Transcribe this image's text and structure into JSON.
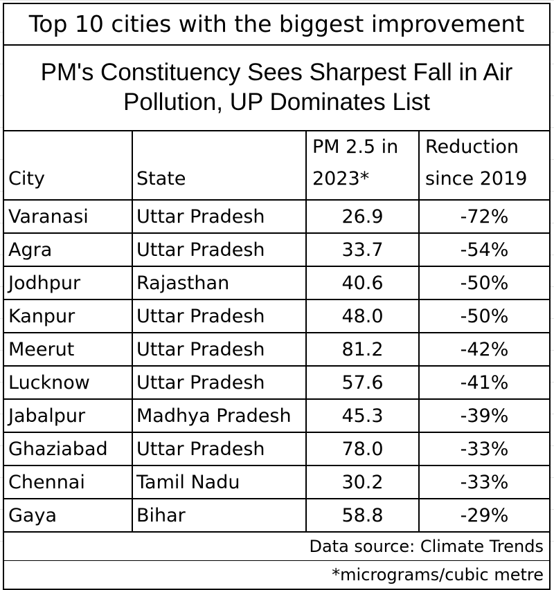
{
  "title": "Top 10 cities with the biggest improvement",
  "subtitle_line1": "PM's Constituency Sees Sharpest Fall in Air",
  "subtitle_line2": "Pollution, UP Dominates List",
  "headers": {
    "city": "City",
    "state": "State",
    "pm_line1": "PM 2.5 in",
    "pm_line2": "2023*",
    "reduction_line1": "Reduction",
    "reduction_line2": "since 2019"
  },
  "rows": [
    {
      "city": "Varanasi",
      "state": "Uttar Pradesh",
      "pm": "26.9",
      "reduction": "-72%"
    },
    {
      "city": "Agra",
      "state": "Uttar Pradesh",
      "pm": "33.7",
      "reduction": "-54%"
    },
    {
      "city": "Jodhpur",
      "state": "Rajasthan",
      "pm": "40.6",
      "reduction": "-50%"
    },
    {
      "city": "Kanpur",
      "state": "Uttar Pradesh",
      "pm": "48.0",
      "reduction": "-50%"
    },
    {
      "city": "Meerut",
      "state": "Uttar Pradesh",
      "pm": "81.2",
      "reduction": "-42%"
    },
    {
      "city": "Lucknow",
      "state": "Uttar Pradesh",
      "pm": "57.6",
      "reduction": "-41%"
    },
    {
      "city": "Jabalpur",
      "state": "Madhya Pradesh",
      "pm": "45.3",
      "reduction": "-39%"
    },
    {
      "city": "Ghaziabad",
      "state": "Uttar Pradesh",
      "pm": "78.0",
      "reduction": "-33%"
    },
    {
      "city": "Chennai",
      "state": "Tamil Nadu",
      "pm": "30.2",
      "reduction": "-33%"
    },
    {
      "city": "Gaya",
      "state": "Bihar",
      "pm": "58.8",
      "reduction": "-29%"
    }
  ],
  "source": "Data source: Climate Trends",
  "unit_note": "*micrograms/cubic metre"
}
